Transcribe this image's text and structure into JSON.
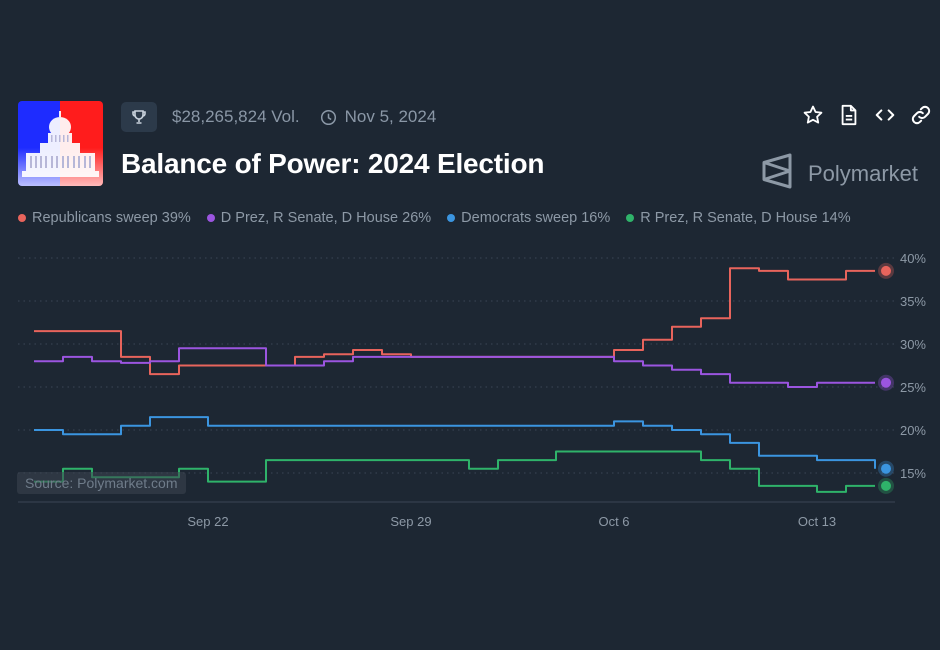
{
  "header": {
    "volume": "$28,265,824 Vol.",
    "date": "Nov 5, 2024",
    "title": "Balance of Power: 2024 Election",
    "brand": "Polymarket"
  },
  "icons": {
    "trophy": "trophy-icon",
    "clock": "clock-icon",
    "star": "star-icon",
    "document": "document-icon",
    "embed": "code-icon",
    "link": "link-icon",
    "logo": "polymarket-logo-icon"
  },
  "colors": {
    "background": "#1d2733",
    "republicans": "#e8645c",
    "dprez": "#9b55e0",
    "democrats": "#3b95e0",
    "rprez": "#2fb36a"
  },
  "legend": [
    {
      "label": "Republicans sweep 39%",
      "color": "#e8645c"
    },
    {
      "label": "D Prez, R Senate, D House 26%",
      "color": "#9b55e0"
    },
    {
      "label": "Democrats sweep 16%",
      "color": "#3b95e0"
    },
    {
      "label": "R Prez, R Senate, D House 14%",
      "color": "#2fb36a"
    }
  ],
  "source": "Source: Polymarket.com",
  "chart_data": {
    "type": "line",
    "x_range": [
      "2024-09-16",
      "2024-10-15"
    ],
    "x_ticks": [
      "Sep 22",
      "Sep 29",
      "Oct 6",
      "Oct 13"
    ],
    "x_tick_dates": [
      "2024-09-22",
      "2024-09-29",
      "2024-10-06",
      "2024-10-13"
    ],
    "y_ticks": [
      "15%",
      "20%",
      "25%",
      "30%",
      "35%",
      "40%"
    ],
    "y_tick_values": [
      15,
      20,
      25,
      30,
      35,
      40
    ],
    "ylim": [
      12,
      40
    ],
    "grid": true,
    "legend_placement": "top",
    "series": [
      {
        "name": "Republicans sweep",
        "color": "#e8645c",
        "points": [
          [
            "2024-09-16",
            31.5
          ],
          [
            "2024-09-18",
            31.5
          ],
          [
            "2024-09-19",
            31.5
          ],
          [
            "2024-09-19",
            28.5
          ],
          [
            "2024-09-20",
            28.5
          ],
          [
            "2024-09-20",
            26.5
          ],
          [
            "2024-09-21",
            27.5
          ],
          [
            "2024-09-24",
            27.5
          ],
          [
            "2024-09-25",
            28.5
          ],
          [
            "2024-09-26",
            28.8
          ],
          [
            "2024-09-27",
            29.3
          ],
          [
            "2024-09-28",
            28.8
          ],
          [
            "2024-09-29",
            28.5
          ],
          [
            "2024-10-01",
            28.5
          ],
          [
            "2024-10-05",
            28.5
          ],
          [
            "2024-10-06",
            29.3
          ],
          [
            "2024-10-07",
            30.5
          ],
          [
            "2024-10-08",
            32
          ],
          [
            "2024-10-09",
            33
          ],
          [
            "2024-10-10",
            35.5
          ],
          [
            "2024-10-10",
            38.8
          ],
          [
            "2024-10-11",
            38.5
          ],
          [
            "2024-10-12",
            37.5
          ],
          [
            "2024-10-13",
            37.5
          ],
          [
            "2024-10-14",
            38.5
          ],
          [
            "2024-10-15",
            38.5
          ]
        ]
      },
      {
        "name": "D Prez, R Senate, D House",
        "color": "#9b55e0",
        "points": [
          [
            "2024-09-16",
            28
          ],
          [
            "2024-09-17",
            28.5
          ],
          [
            "2024-09-18",
            28
          ],
          [
            "2024-09-19",
            27.8
          ],
          [
            "2024-09-20",
            28
          ],
          [
            "2024-09-21",
            29.5
          ],
          [
            "2024-09-23",
            29.5
          ],
          [
            "2024-09-24",
            27.5
          ],
          [
            "2024-09-26",
            28
          ],
          [
            "2024-09-27",
            28.5
          ],
          [
            "2024-10-05",
            28.5
          ],
          [
            "2024-10-06",
            28
          ],
          [
            "2024-10-07",
            27.5
          ],
          [
            "2024-10-08",
            27
          ],
          [
            "2024-10-09",
            26.5
          ],
          [
            "2024-10-10",
            25.5
          ],
          [
            "2024-10-11",
            25.5
          ],
          [
            "2024-10-12",
            25
          ],
          [
            "2024-10-13",
            25.5
          ],
          [
            "2024-10-15",
            25.5
          ]
        ]
      },
      {
        "name": "Democrats sweep",
        "color": "#3b95e0",
        "points": [
          [
            "2024-09-16",
            20
          ],
          [
            "2024-09-17",
            19.5
          ],
          [
            "2024-09-18",
            19.5
          ],
          [
            "2024-09-19",
            20.5
          ],
          [
            "2024-09-20",
            21.5
          ],
          [
            "2024-09-21",
            21.5
          ],
          [
            "2024-09-22",
            20.5
          ],
          [
            "2024-09-29",
            20.5
          ],
          [
            "2024-10-05",
            20.5
          ],
          [
            "2024-10-06",
            21
          ],
          [
            "2024-10-07",
            20.5
          ],
          [
            "2024-10-08",
            20
          ],
          [
            "2024-10-09",
            19.5
          ],
          [
            "2024-10-10",
            18.5
          ],
          [
            "2024-10-11",
            17
          ],
          [
            "2024-10-13",
            16.5
          ],
          [
            "2024-10-14",
            16.5
          ],
          [
            "2024-10-15",
            15.5
          ]
        ]
      },
      {
        "name": "R Prez, R Senate, D House",
        "color": "#2fb36a",
        "points": [
          [
            "2024-09-16",
            14
          ],
          [
            "2024-09-17",
            15.5
          ],
          [
            "2024-09-18",
            14.5
          ],
          [
            "2024-09-20",
            14.5
          ],
          [
            "2024-09-21",
            15.5
          ],
          [
            "2024-09-22",
            14
          ],
          [
            "2024-09-23",
            14
          ],
          [
            "2024-09-24",
            16.5
          ],
          [
            "2024-09-29",
            16.5
          ],
          [
            "2024-10-01",
            15.5
          ],
          [
            "2024-10-02",
            16.5
          ],
          [
            "2024-10-04",
            17.5
          ],
          [
            "2024-10-07",
            17.5
          ],
          [
            "2024-10-08",
            17.5
          ],
          [
            "2024-10-09",
            16.5
          ],
          [
            "2024-10-10",
            15.5
          ],
          [
            "2024-10-11",
            13.5
          ],
          [
            "2024-10-12",
            13.5
          ],
          [
            "2024-10-13",
            12.8
          ],
          [
            "2024-10-14",
            13.5
          ],
          [
            "2024-10-15",
            13.5
          ]
        ]
      }
    ]
  }
}
